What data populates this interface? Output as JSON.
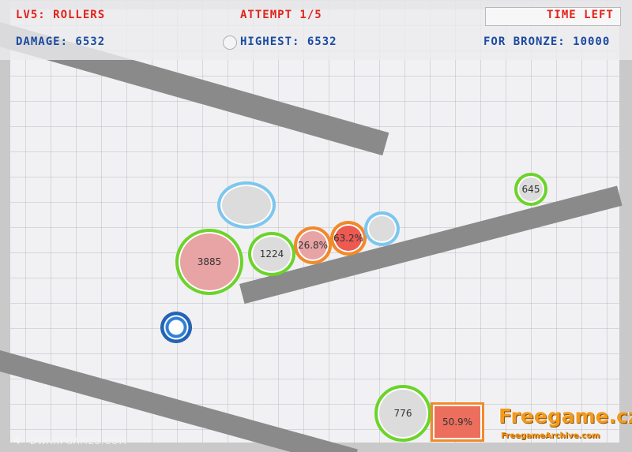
{
  "hud": {
    "level": "LV5: ROLLERS",
    "attempt": "ATTEMPT 1/5",
    "time_left": "TIME LEFT",
    "damage": "DAMAGE: 6532",
    "highest": "HIGHEST: 6532",
    "for_bronze": "FOR BRONZE: 10000"
  },
  "balls": {
    "b3885": "3885",
    "b1224": "1224",
    "b26": "26.8%",
    "b63": "63.2%",
    "b645": "645",
    "b776": "776",
    "box509": "50.9%"
  },
  "footer": {
    "publisher": "DWARFGAMES.COM",
    "sound_icon": "speaker-icon"
  },
  "watermark": {
    "main": "Freegame.cz",
    "sub": "FreegameArchive.com"
  },
  "colors": {
    "hud_red": "#e2231a",
    "hud_blue": "#1b4aa0",
    "ball_green": "#6bd42a",
    "ball_blue": "#7cc6ef",
    "ball_orange": "#f08a2a"
  }
}
